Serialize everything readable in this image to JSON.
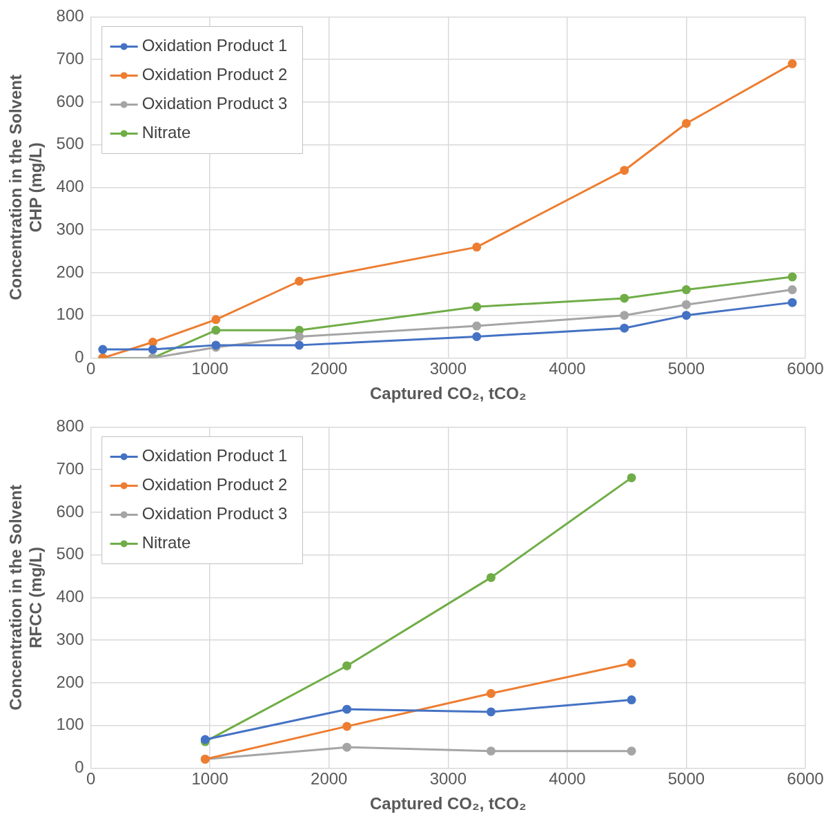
{
  "chart_data": [
    {
      "type": "line",
      "xlabel": "Captured CO₂, tCO₂",
      "ylabel": "Concentration in the Solvent\nCHP (mg/L)",
      "x": [
        100,
        520,
        1050,
        1750,
        3240,
        4480,
        5000,
        5890
      ],
      "xlim": [
        0,
        6000
      ],
      "xticks": [
        0,
        1000,
        2000,
        3000,
        4000,
        5000,
        6000
      ],
      "ylim": [
        0,
        800
      ],
      "yticks": [
        0,
        100,
        200,
        300,
        400,
        500,
        600,
        700,
        800
      ],
      "grid": true,
      "legend": "top left",
      "marker": "circle",
      "line_style": "solid",
      "series": [
        {
          "name": "Oxidation Product 1",
          "color": "#4472c4",
          "values": [
            20,
            20,
            30,
            30,
            50,
            70,
            100,
            130
          ]
        },
        {
          "name": "Oxidation Product 2",
          "color": "#ed7d31",
          "values": [
            0,
            37,
            90,
            180,
            260,
            440,
            550,
            690
          ]
        },
        {
          "name": "Oxidation Product 3",
          "color": "#a5a5a5",
          "values": [
            0,
            0,
            25,
            50,
            75,
            100,
            125,
            160
          ]
        },
        {
          "name": "Nitrate",
          "color": "#70ad47",
          "values": [
            0,
            0,
            65,
            65,
            120,
            140,
            160,
            190
          ]
        }
      ]
    },
    {
      "type": "line",
      "xlabel": "Captured CO₂, tCO₂",
      "ylabel": "Concentration in the Solvent\nRFCC (mg/L)",
      "x": [
        960,
        2150,
        3360,
        4540
      ],
      "xlim": [
        0,
        6000
      ],
      "xticks": [
        0,
        1000,
        2000,
        3000,
        4000,
        5000,
        6000
      ],
      "ylim": [
        0,
        800
      ],
      "yticks": [
        0,
        100,
        200,
        300,
        400,
        500,
        600,
        700,
        800
      ],
      "grid": true,
      "legend": "top left",
      "marker": "circle",
      "line_style": "solid",
      "series": [
        {
          "name": "Oxidation Product 1",
          "color": "#4472c4",
          "values": [
            67,
            138,
            132,
            160
          ]
        },
        {
          "name": "Oxidation Product 2",
          "color": "#ed7d31",
          "values": [
            21,
            98,
            175,
            246
          ]
        },
        {
          "name": "Oxidation Product 3",
          "color": "#a5a5a5",
          "values": [
            21,
            49,
            40,
            40
          ]
        },
        {
          "name": "Nitrate",
          "color": "#70ad47",
          "values": [
            62,
            240,
            447,
            681
          ]
        }
      ]
    }
  ]
}
